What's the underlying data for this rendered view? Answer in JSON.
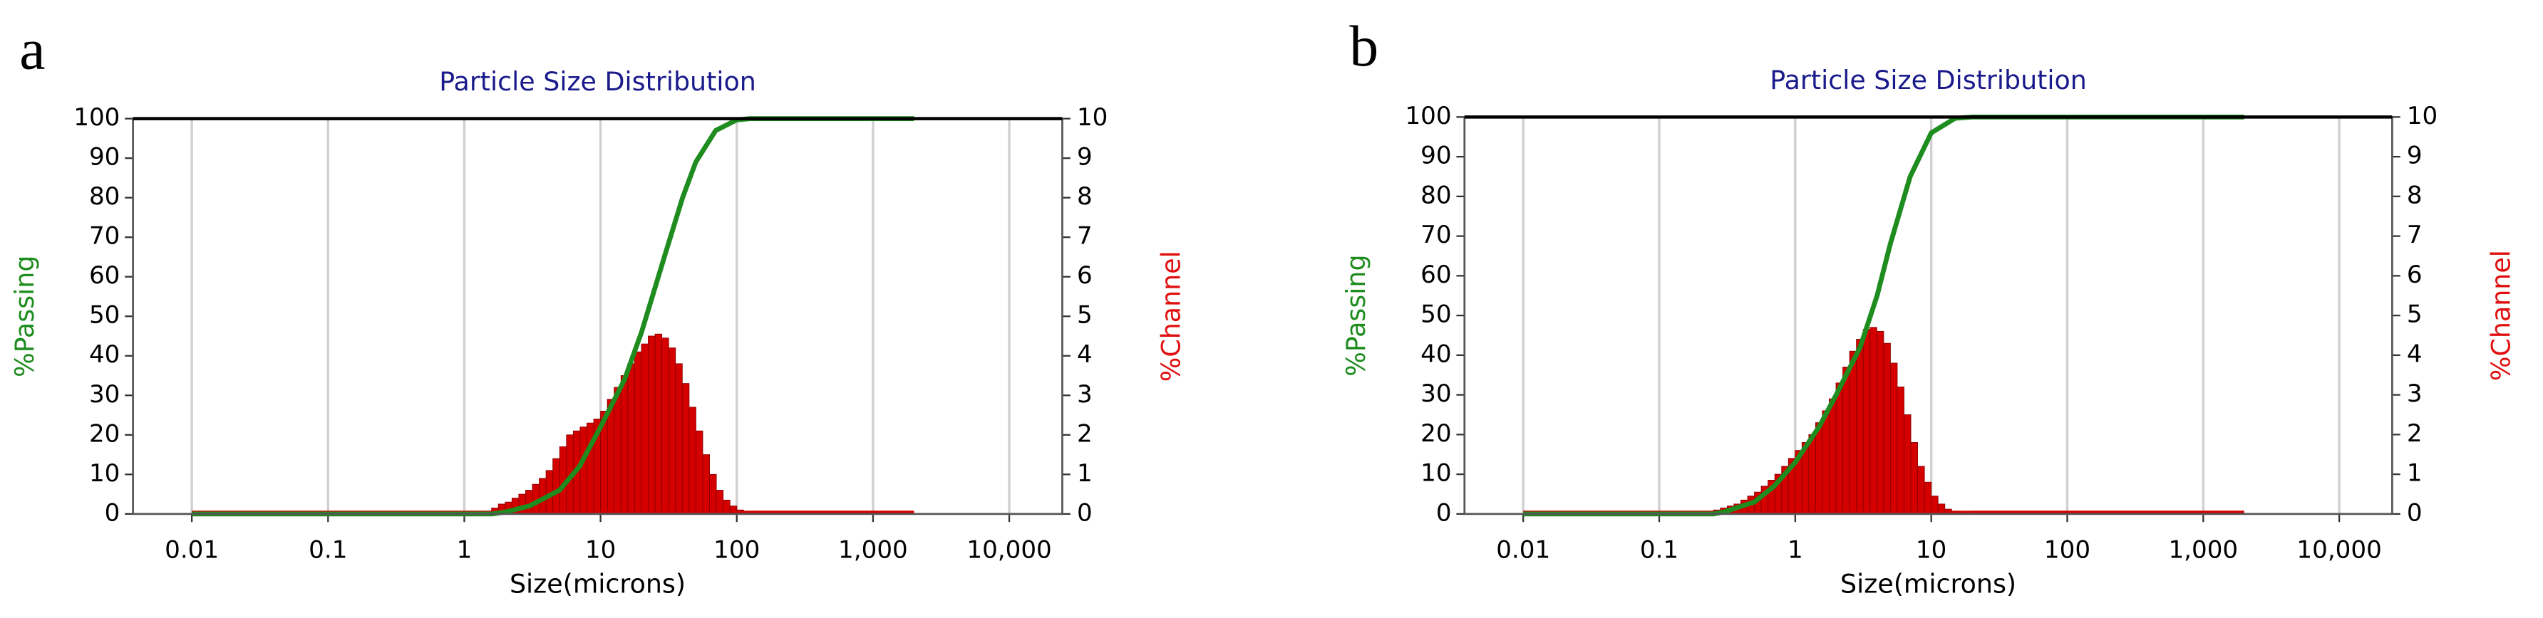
{
  "chart_data": [
    {
      "type": "combo",
      "panel_label": "a",
      "title": "Particle Size Distribution",
      "x_label": "Size(microns)",
      "y_label": "%Passing",
      "y2_label": "%Channel",
      "log_x": true,
      "grid": "x",
      "xlim": [
        0.0037,
        24500
      ],
      "xticks": [
        0.01,
        0.1,
        1,
        10,
        100,
        {
          "value": 1000,
          "label": "1,000"
        },
        {
          "value": 10000,
          "label": "10,000"
        }
      ],
      "ylim": [
        0,
        100
      ],
      "yticks": [
        0,
        10,
        20,
        30,
        40,
        50,
        60,
        70,
        80,
        90,
        100
      ],
      "y2lim": [
        0,
        10
      ],
      "y2ticks": [
        0,
        1,
        2,
        3,
        4,
        5,
        6,
        7,
        8,
        9,
        10
      ],
      "series": [
        {
          "color": "#d40000",
          "axis": "y2",
          "bins": [
            0.01,
            1.585,
            1.778,
            1.995,
            2.239,
            2.512,
            2.818,
            3.162,
            3.548,
            3.981,
            4.467,
            5.012,
            5.623,
            6.31,
            7.079,
            7.943,
            8.913,
            10,
            11.22,
            12.59,
            14.13,
            15.85,
            17.78,
            19.95,
            22.39,
            25.12,
            28.18,
            31.62,
            35.48,
            39.81,
            44.67,
            50.12,
            56.23,
            63.1,
            70.79,
            79.43,
            89.13,
            100,
            112.2,
            125.9,
            2000
          ],
          "values": [
            0,
            0.15,
            0.25,
            0.3,
            0.4,
            0.5,
            0.6,
            0.75,
            0.9,
            1.1,
            1.4,
            1.7,
            2.0,
            2.1,
            2.2,
            2.3,
            2.4,
            2.6,
            2.9,
            3.2,
            3.5,
            3.8,
            4.1,
            4.3,
            4.5,
            4.55,
            4.45,
            4.2,
            3.8,
            3.3,
            2.7,
            2.1,
            1.5,
            1.0,
            0.6,
            0.35,
            0.2,
            0.1,
            0.05,
            0
          ]
        },
        {
          "color": "#1e8c1e",
          "x": [
            0.01,
            1.6,
            2,
            3,
            5,
            7,
            10,
            15,
            20,
            30,
            40,
            50,
            70,
            100,
            125,
            2000
          ],
          "values": [
            0,
            0,
            0.5,
            2,
            6,
            12,
            22,
            34,
            46,
            66,
            80,
            89,
            97,
            99.7,
            100,
            100
          ]
        }
      ]
    },
    {
      "type": "combo",
      "panel_label": "b",
      "title": "Particle Size Distribution",
      "x_label": "Size(microns)",
      "y_label": "%Passing",
      "y2_label": "%Channel",
      "log_x": true,
      "grid": "x",
      "xlim": [
        0.0037,
        24500
      ],
      "xticks": [
        0.01,
        0.1,
        1,
        10,
        100,
        {
          "value": 1000,
          "label": "1,000"
        },
        {
          "value": 10000,
          "label": "10,000"
        }
      ],
      "ylim": [
        0,
        100
      ],
      "yticks": [
        0,
        10,
        20,
        30,
        40,
        50,
        60,
        70,
        80,
        90,
        100
      ],
      "y2lim": [
        0,
        10
      ],
      "y2ticks": [
        0,
        1,
        2,
        3,
        4,
        5,
        6,
        7,
        8,
        9,
        10
      ],
      "series": [
        {
          "color": "#d40000",
          "axis": "y2",
          "bins": [
            0.01,
            0.2512,
            0.2818,
            0.3162,
            0.3548,
            0.3981,
            0.4467,
            0.5012,
            0.5623,
            0.631,
            0.7079,
            0.7943,
            0.8913,
            1,
            1.122,
            1.259,
            1.413,
            1.585,
            1.778,
            1.995,
            2.239,
            2.512,
            2.818,
            3.162,
            3.548,
            3.981,
            4.467,
            5.012,
            5.623,
            6.31,
            7.079,
            7.943,
            8.913,
            10,
            11.22,
            12.59,
            14.13,
            15.85,
            17.78,
            19.95,
            2000
          ],
          "values": [
            0,
            0.1,
            0.15,
            0.2,
            0.25,
            0.35,
            0.45,
            0.55,
            0.7,
            0.85,
            1.0,
            1.2,
            1.4,
            1.6,
            1.8,
            2.0,
            2.3,
            2.6,
            2.9,
            3.3,
            3.7,
            4.1,
            4.4,
            4.65,
            4.7,
            4.6,
            4.3,
            3.8,
            3.2,
            2.5,
            1.8,
            1.2,
            0.8,
            0.45,
            0.25,
            0.12,
            0.06,
            0.03,
            0.01,
            0
          ]
        },
        {
          "color": "#1e8c1e",
          "x": [
            0.01,
            0.25,
            0.3,
            0.5,
            0.7,
            1,
            1.5,
            2,
            3,
            4,
            5,
            7,
            10,
            15,
            20,
            2000
          ],
          "values": [
            0,
            0,
            0.5,
            3,
            7,
            13,
            22,
            30,
            42,
            55,
            68,
            85,
            96,
            99.7,
            100,
            100
          ]
        }
      ]
    }
  ]
}
